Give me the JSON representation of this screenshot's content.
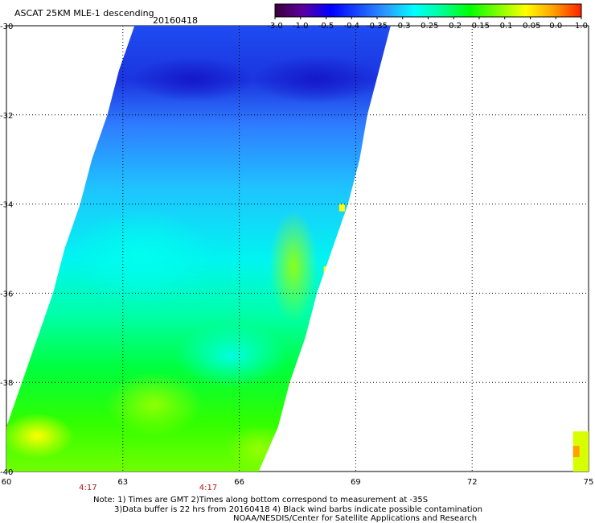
{
  "title": {
    "product": "ASCAT 25KM MLE-1 descending",
    "date": "20160418"
  },
  "colorbar": {
    "labels": [
      "-3.0",
      "-1.0",
      "-0.5",
      "-0.4",
      "-0.35",
      "-0.3",
      "-0.25",
      "-0.2",
      "-0.15",
      "-0.1",
      "-0.05",
      "0.0",
      "1.0"
    ],
    "colors": [
      "#3a0038",
      "#5b009f",
      "#0000ff",
      "#1a4aff",
      "#2b9bff",
      "#00ffff",
      "#00ff96",
      "#00ff00",
      "#7dff00",
      "#ffff00",
      "#ffa000",
      "#ff2000"
    ]
  },
  "map": {
    "lat_labels": [
      "-30",
      "-32",
      "-34",
      "-36",
      "-38",
      "-40"
    ],
    "lon_labels": [
      "60",
      "63",
      "66",
      "69",
      "72",
      "75"
    ],
    "lat_range": [
      -40,
      -30
    ],
    "lon_range": [
      60,
      75
    ],
    "gridlines": true,
    "times": [
      {
        "label": "4:17",
        "lon": 62.1
      },
      {
        "label": "4:17",
        "lon": 65.2
      }
    ],
    "swath": [
      {
        "lat": -30.0,
        "west_lon": 63.3,
        "east_lon": 69.9
      },
      {
        "lat": -31.0,
        "west_lon": 62.9,
        "east_lon": 69.6
      },
      {
        "lat": -32.0,
        "west_lon": 62.6,
        "east_lon": 69.3
      },
      {
        "lat": -33.0,
        "west_lon": 62.2,
        "east_lon": 69.1
      },
      {
        "lat": -34.0,
        "west_lon": 61.9,
        "east_lon": 68.8
      },
      {
        "lat": -35.0,
        "west_lon": 61.5,
        "east_lon": 68.4
      },
      {
        "lat": -36.0,
        "west_lon": 61.2,
        "east_lon": 68.0
      },
      {
        "lat": -37.0,
        "west_lon": 60.8,
        "east_lon": 67.7
      },
      {
        "lat": -38.0,
        "west_lon": 60.4,
        "east_lon": 67.3
      },
      {
        "lat": -39.0,
        "west_lon": 60.0,
        "east_lon": 67.0
      },
      {
        "lat": -40.0,
        "west_lon": 60.0,
        "east_lon": 66.5
      }
    ],
    "edge_swath": {
      "lat_top": -39.1,
      "lat_bottom": -40.0,
      "west_lon": 74.6,
      "east_lon": 75.0
    }
  },
  "notes": {
    "line1": "Note: 1) Times are GMT 2)Times along bottom correspond to measurement at -35S",
    "line2": "3)Data buffer is 22 hrs from 20160418 4) Black wind barbs indicate possible contamination",
    "line3": "NOAA/NESDIS/Center for Satellite Applications and Research"
  }
}
